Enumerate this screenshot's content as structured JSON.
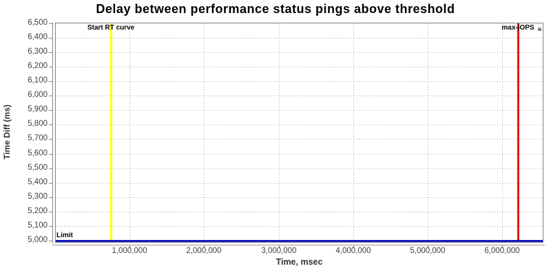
{
  "colors": {
    "background": "#ffffff",
    "grid": "#cccccc",
    "plot_border": "#808080",
    "axis_line": "#999999",
    "tick_label": "#3f3f3f",
    "axis_title": "#333333",
    "title": "#000000"
  },
  "chart_data": {
    "type": "scatter",
    "title": "Delay between performance status pings above threshold",
    "xlabel": "Time, msec",
    "ylabel": "Time Diff (ms)",
    "xlim": [
      0,
      6550000
    ],
    "ylim": [
      5000,
      6500
    ],
    "grid": true,
    "legend_position": "none",
    "x_ticks": [
      {
        "v": 1000000,
        "label": "1,000,000"
      },
      {
        "v": 2000000,
        "label": "2,000,000"
      },
      {
        "v": 3000000,
        "label": "3,000,000"
      },
      {
        "v": 4000000,
        "label": "4,000,000"
      },
      {
        "v": 5000000,
        "label": "5,000,000"
      },
      {
        "v": 6000000,
        "label": "6,000,000"
      }
    ],
    "y_ticks": [
      {
        "v": 5000,
        "label": "5,000"
      },
      {
        "v": 5100,
        "label": "5,100"
      },
      {
        "v": 5200,
        "label": "5,200"
      },
      {
        "v": 5300,
        "label": "5,300"
      },
      {
        "v": 5400,
        "label": "5,400"
      },
      {
        "v": 5500,
        "label": "5,500"
      },
      {
        "v": 5600,
        "label": "5,600"
      },
      {
        "v": 5700,
        "label": "5,700"
      },
      {
        "v": 5800,
        "label": "5,800"
      },
      {
        "v": 5900,
        "label": "5,900"
      },
      {
        "v": 6000,
        "label": "6,000"
      },
      {
        "v": 6100,
        "label": "6,100"
      },
      {
        "v": 6200,
        "label": "6,200"
      },
      {
        "v": 6300,
        "label": "6,300"
      },
      {
        "v": 6400,
        "label": "6,400"
      },
      {
        "v": 6500,
        "label": "6,500"
      }
    ],
    "annotations": [
      {
        "id": "start-rt-curve",
        "type": "vline",
        "x": 750000,
        "label": "Start RT curve",
        "color": "#ffff00"
      },
      {
        "id": "max-jops",
        "type": "vline",
        "x": 6210000,
        "label": "max-jOPS",
        "color": "#ee1414"
      },
      {
        "id": "limit",
        "type": "hline",
        "y": 5000,
        "label": "Limit",
        "color": "#1818c8"
      }
    ],
    "series": [
      {
        "name": "ping delay above threshold",
        "marker": "square",
        "color": "#a59a9e",
        "points": [
          {
            "x": 6500000,
            "y": 6460
          }
        ]
      }
    ]
  }
}
